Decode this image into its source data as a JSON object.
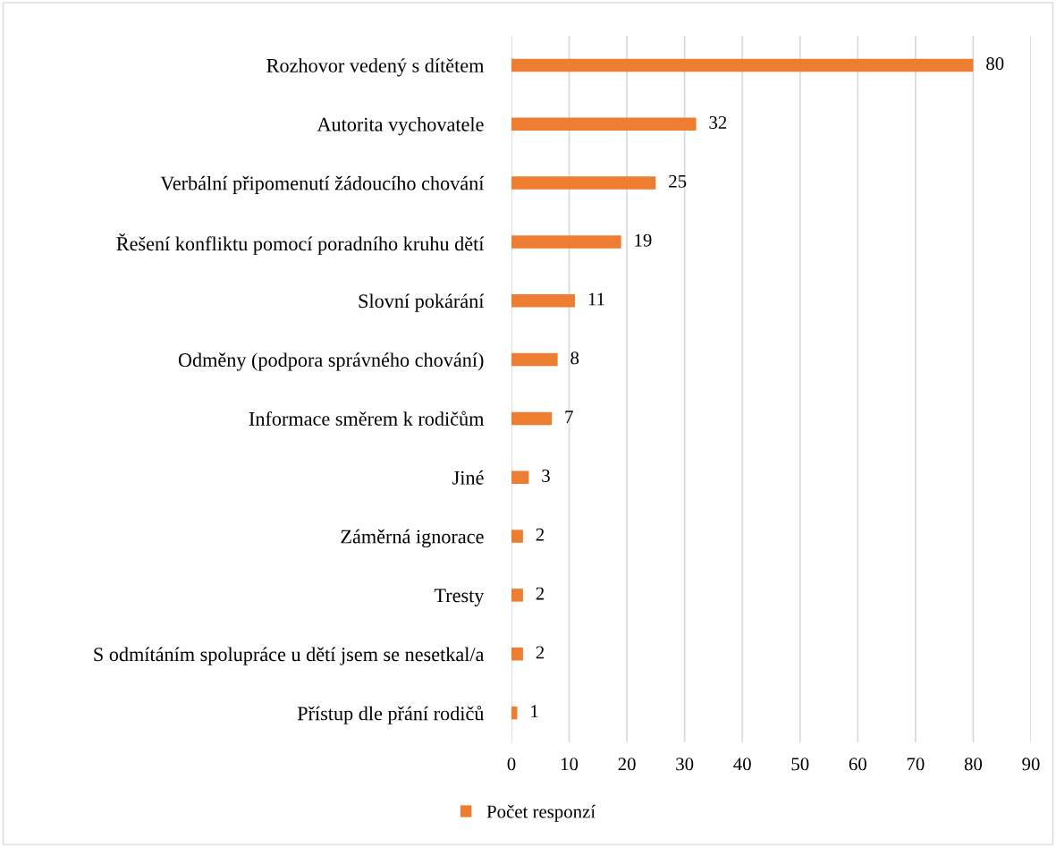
{
  "chart_data": {
    "type": "bar",
    "orientation": "horizontal",
    "categories": [
      "Rozhovor vedený s dítětem",
      "Autorita vychovatele",
      "Verbální připomenutí žádoucího chování",
      "Řešení konfliktu pomocí poradního kruhu dětí",
      "Slovní pokárání",
      "Odměny (podpora správného chování)",
      "Informace směrem k rodičům",
      "Jiné",
      "Záměrná ignorace",
      "Tresty",
      "S odmítáním spolupráce u dětí jsem se nesetkal/a",
      "Přístup dle přání rodičů"
    ],
    "series": [
      {
        "name": "Počet responzí",
        "color": "#ed7d31",
        "values": [
          80,
          32,
          25,
          19,
          11,
          8,
          7,
          3,
          2,
          2,
          2,
          1
        ]
      }
    ],
    "xlim": [
      0,
      90
    ],
    "xticks": [
      0,
      10,
      20,
      30,
      40,
      50,
      60,
      70,
      80,
      90
    ],
    "grid": "x",
    "legend": "bottom",
    "data_labels": true
  }
}
